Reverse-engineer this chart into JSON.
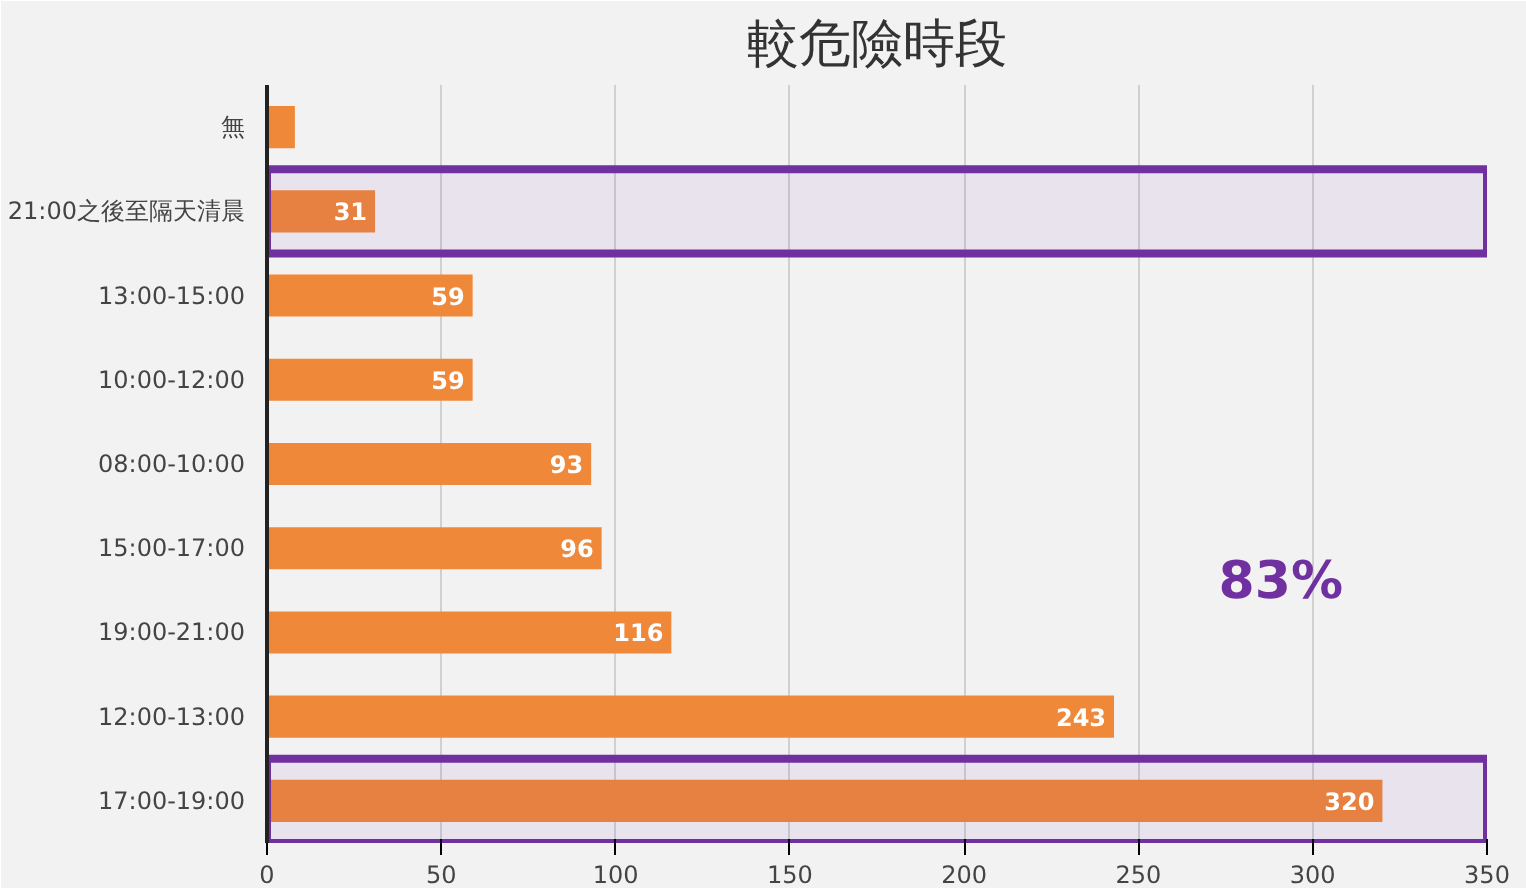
{
  "chart_data": {
    "type": "bar",
    "orientation": "horizontal",
    "title": "較危險時段",
    "categories": [
      "無",
      "21:00之後至隔天清晨",
      "13:00-15:00",
      "10:00-12:00",
      "08:00-10:00",
      "15:00-17:00",
      "19:00-21:00",
      "12:00-13:00",
      "17:00-19:00"
    ],
    "values": [
      8,
      31,
      59,
      59,
      93,
      96,
      116,
      243,
      320
    ],
    "value_labels": [
      null,
      "31",
      "59",
      "59",
      "93",
      "96",
      "116",
      "243",
      "320"
    ],
    "color": "#f0883a",
    "xlim": [
      0,
      350
    ],
    "xticks": [
      0,
      50,
      100,
      150,
      200,
      250,
      300,
      350
    ],
    "grid": "x",
    "bands": [
      {
        "axis": "y",
        "from": "21:00之後至隔天清晨",
        "to": "21:00之後至隔天清晨",
        "color": "#7030a0"
      },
      {
        "axis": "y",
        "from": "17:00-19:00",
        "to": "17:00-19:00",
        "color": "#7030a0"
      }
    ],
    "annotations": [
      "83%"
    ]
  }
}
